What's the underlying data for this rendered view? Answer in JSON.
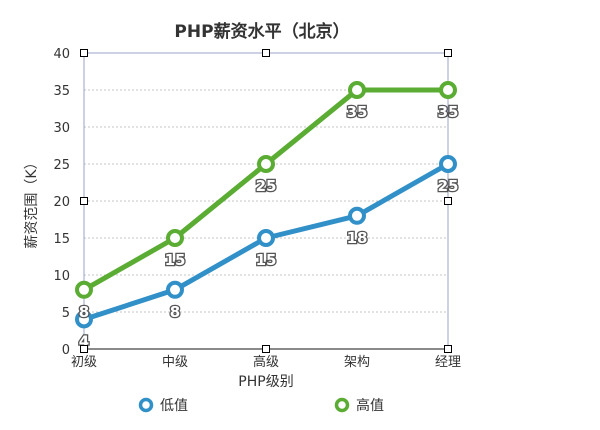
{
  "chart_data": {
    "type": "line",
    "title": "PHP薪资水平（北京）",
    "xlabel": "PHP级别",
    "ylabel": "薪资范围（K）",
    "categories": [
      "初级",
      "中级",
      "高级",
      "架构",
      "经理"
    ],
    "ylim": [
      0,
      40
    ],
    "yticks": [
      0,
      5,
      10,
      15,
      20,
      25,
      30,
      35,
      40
    ],
    "grid": true,
    "legend": "bottom",
    "series": [
      {
        "name": "低值",
        "values": [
          4,
          8,
          15,
          18,
          25
        ],
        "labels": [
          "4",
          "8",
          "15",
          "18",
          "25"
        ],
        "color": "#3290c8"
      },
      {
        "name": "高值",
        "values": [
          8,
          15,
          25,
          35,
          35
        ],
        "labels": [
          "8",
          "15",
          "25",
          "35",
          "35"
        ],
        "color": "#5aac33"
      }
    ]
  }
}
